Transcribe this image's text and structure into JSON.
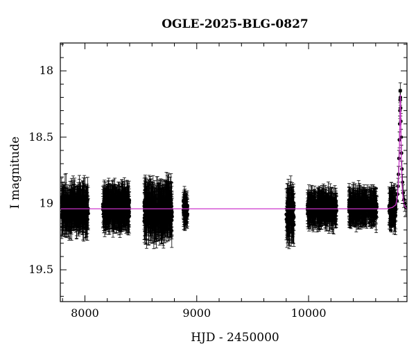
{
  "chart_data": {
    "type": "scatter",
    "title": "OGLE-2025-BLG-0827",
    "xlabel": "HJD - 2450000",
    "ylabel": "I magnitude",
    "xlim": [
      7780,
      10880
    ],
    "ylim": [
      19.74,
      17.79
    ],
    "y_inverted": true,
    "x_ticks": [
      8000,
      9000,
      10000
    ],
    "y_ticks": [
      18,
      18.5,
      19,
      19.5
    ],
    "grid": false,
    "colors": {
      "data": "#000000",
      "model": "#cc33cc"
    },
    "baseline_magnitude": 19.04,
    "observing_seasons": [
      {
        "start": 7790,
        "end": 8030,
        "mean_mag": 19.04,
        "scatter": 0.08,
        "error": 0.12
      },
      {
        "start": 8160,
        "end": 8400,
        "mean_mag": 19.03,
        "scatter": 0.07,
        "error": 0.11
      },
      {
        "start": 8530,
        "end": 8780,
        "mean_mag": 19.06,
        "scatter": 0.09,
        "error": 0.14
      },
      {
        "start": 8880,
        "end": 8920,
        "mean_mag": 19.04,
        "scatter": 0.05,
        "error": 0.09
      },
      {
        "start": 9800,
        "end": 9870,
        "mean_mag": 19.08,
        "scatter": 0.1,
        "error": 0.13
      },
      {
        "start": 9990,
        "end": 10250,
        "mean_mag": 19.04,
        "scatter": 0.06,
        "error": 0.09
      },
      {
        "start": 10360,
        "end": 10610,
        "mean_mag": 19.03,
        "scatter": 0.06,
        "error": 0.09
      },
      {
        "start": 10720,
        "end": 10780,
        "mean_mag": 19.04,
        "scatter": 0.06,
        "error": 0.1
      }
    ],
    "event_points": [
      {
        "x": 10790,
        "y": 18.98
      },
      {
        "x": 10795,
        "y": 18.93
      },
      {
        "x": 10800,
        "y": 18.87
      },
      {
        "x": 10804,
        "y": 18.78
      },
      {
        "x": 10808,
        "y": 18.66
      },
      {
        "x": 10812,
        "y": 18.52
      },
      {
        "x": 10815,
        "y": 18.4
      },
      {
        "x": 10817,
        "y": 18.3
      },
      {
        "x": 10819,
        "y": 18.22
      },
      {
        "x": 10820,
        "y": 18.15
      },
      {
        "x": 10821,
        "y": 18.2
      },
      {
        "x": 10823,
        "y": 18.28
      },
      {
        "x": 10825,
        "y": 18.38
      },
      {
        "x": 10828,
        "y": 18.5
      },
      {
        "x": 10831,
        "y": 18.62
      },
      {
        "x": 10835,
        "y": 18.74
      },
      {
        "x": 10840,
        "y": 18.84
      },
      {
        "x": 10846,
        "y": 18.92
      },
      {
        "x": 10852,
        "y": 18.97
      },
      {
        "x": 10860,
        "y": 19.0
      },
      {
        "x": 10870,
        "y": 19.03
      }
    ],
    "model_curve": {
      "name": "",
      "x": [
        7780,
        10700,
        10750,
        10780,
        10795,
        10805,
        10812,
        10816,
        10819,
        10821,
        10823,
        10826,
        10830,
        10836,
        10845,
        10858,
        10880
      ],
      "y": [
        19.04,
        19.04,
        19.03,
        19.01,
        18.95,
        18.82,
        18.6,
        18.4,
        18.22,
        18.18,
        18.28,
        18.48,
        18.68,
        18.86,
        18.97,
        19.02,
        19.04
      ]
    }
  }
}
